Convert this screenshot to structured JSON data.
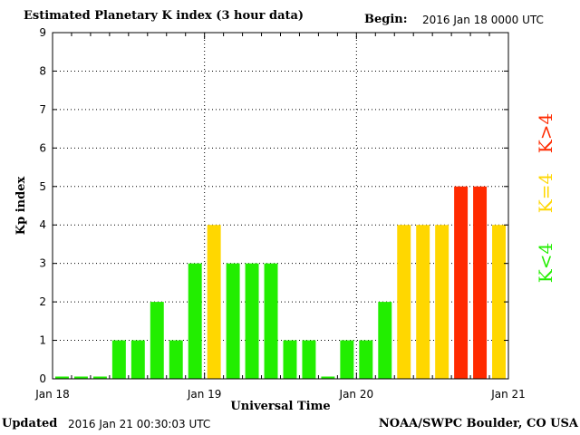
{
  "header": {
    "title": "Estimated Planetary K index (3 hour data)",
    "begin_label": "Begin:",
    "begin_value": "2016 Jan 18 0000 UTC"
  },
  "footer": {
    "updated_label": "Updated",
    "updated_value": "2016 Jan 21 00:30:03 UTC",
    "credit": "NOAA/SWPC Boulder, CO USA"
  },
  "colors": {
    "low": "#22ee00",
    "moderate": "#ffd700",
    "high": "#ff2a00"
  },
  "legend": [
    {
      "label": "K<4",
      "color_key": "low"
    },
    {
      "label": "K=4",
      "color_key": "moderate"
    },
    {
      "label": "K>4",
      "color_key": "high"
    }
  ],
  "chart_data": {
    "type": "bar",
    "xlabel": "Universal Time",
    "ylabel": "Kp index",
    "ylim": [
      0,
      9
    ],
    "yticks": [
      0,
      1,
      2,
      3,
      4,
      5,
      6,
      7,
      8,
      9
    ],
    "x_tick_labels": [
      "Jan 18",
      "Jan 19",
      "Jan 20",
      "Jan 21"
    ],
    "interval_hours": 3,
    "values": [
      0,
      0,
      0,
      1,
      1,
      2,
      1,
      3,
      4,
      3,
      3,
      3,
      1,
      1,
      0,
      1,
      1,
      2,
      4,
      4,
      4,
      5,
      5,
      4
    ],
    "grid": true
  }
}
